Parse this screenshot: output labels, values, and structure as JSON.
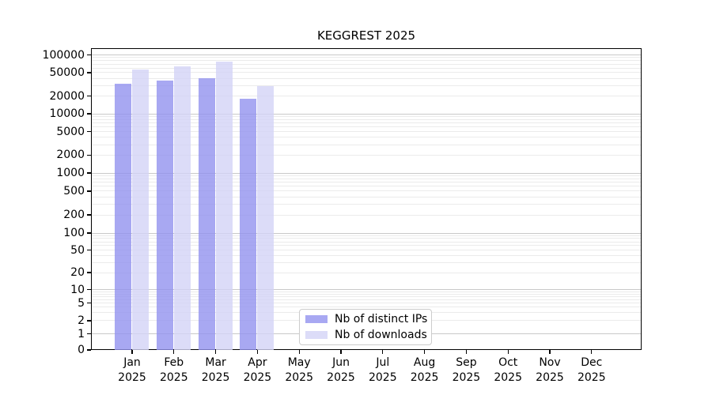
{
  "chart_data": {
    "type": "bar",
    "title": "KEGGREST 2025",
    "categories": [
      "Jan 2025",
      "Feb 2025",
      "Mar 2025",
      "Apr 2025",
      "May 2025",
      "Jun 2025",
      "Jul 2025",
      "Aug 2025",
      "Sep 2025",
      "Oct 2025",
      "Nov 2025",
      "Dec 2025"
    ],
    "series": [
      {
        "name": "Nb of distinct IPs",
        "color": "#9292ef",
        "values": [
          32500,
          36500,
          40000,
          18000,
          null,
          null,
          null,
          null,
          null,
          null,
          null,
          null
        ]
      },
      {
        "name": "Nb of downloads",
        "color": "#d3d3f6",
        "values": [
          56500,
          63000,
          77500,
          29500,
          null,
          null,
          null,
          null,
          null,
          null,
          null,
          null
        ]
      }
    ],
    "fill_alpha": 0.8,
    "yscale": "log with 0 pinned at baseline",
    "yticks": [
      0,
      1,
      2,
      5,
      10,
      20,
      50,
      100,
      200,
      500,
      1000,
      2000,
      5000,
      10000,
      20000,
      50000,
      100000
    ],
    "ylim": [
      0,
      100000
    ],
    "grid": "horizontal: major at powers of 10, minor at 2-9 multiples",
    "grid_colors": {
      "major": "#c9c9c9",
      "minor": "#ebebeb"
    },
    "legend_position": "inside bottom-center",
    "legend": {
      "items": [
        {
          "label": "Nb of distinct IPs",
          "color": "#9292ef"
        },
        {
          "label": "Nb of downloads",
          "color": "#d3d3f6"
        }
      ]
    }
  }
}
